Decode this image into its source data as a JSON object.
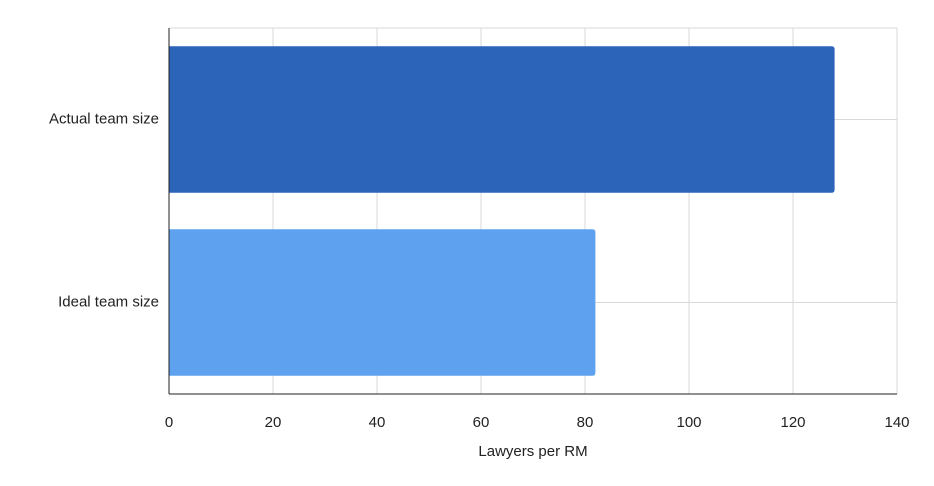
{
  "chart_data": {
    "type": "bar",
    "orientation": "horizontal",
    "categories": [
      "Actual team size",
      "Ideal team size"
    ],
    "values": [
      128,
      82
    ],
    "colors": [
      "#2b64b8",
      "#5ea1ee"
    ],
    "x_label": "Lawyers per RM",
    "xlim": [
      0,
      140
    ],
    "xticks": [
      0,
      20,
      40,
      60,
      80,
      100,
      120,
      140
    ],
    "grid": true
  }
}
